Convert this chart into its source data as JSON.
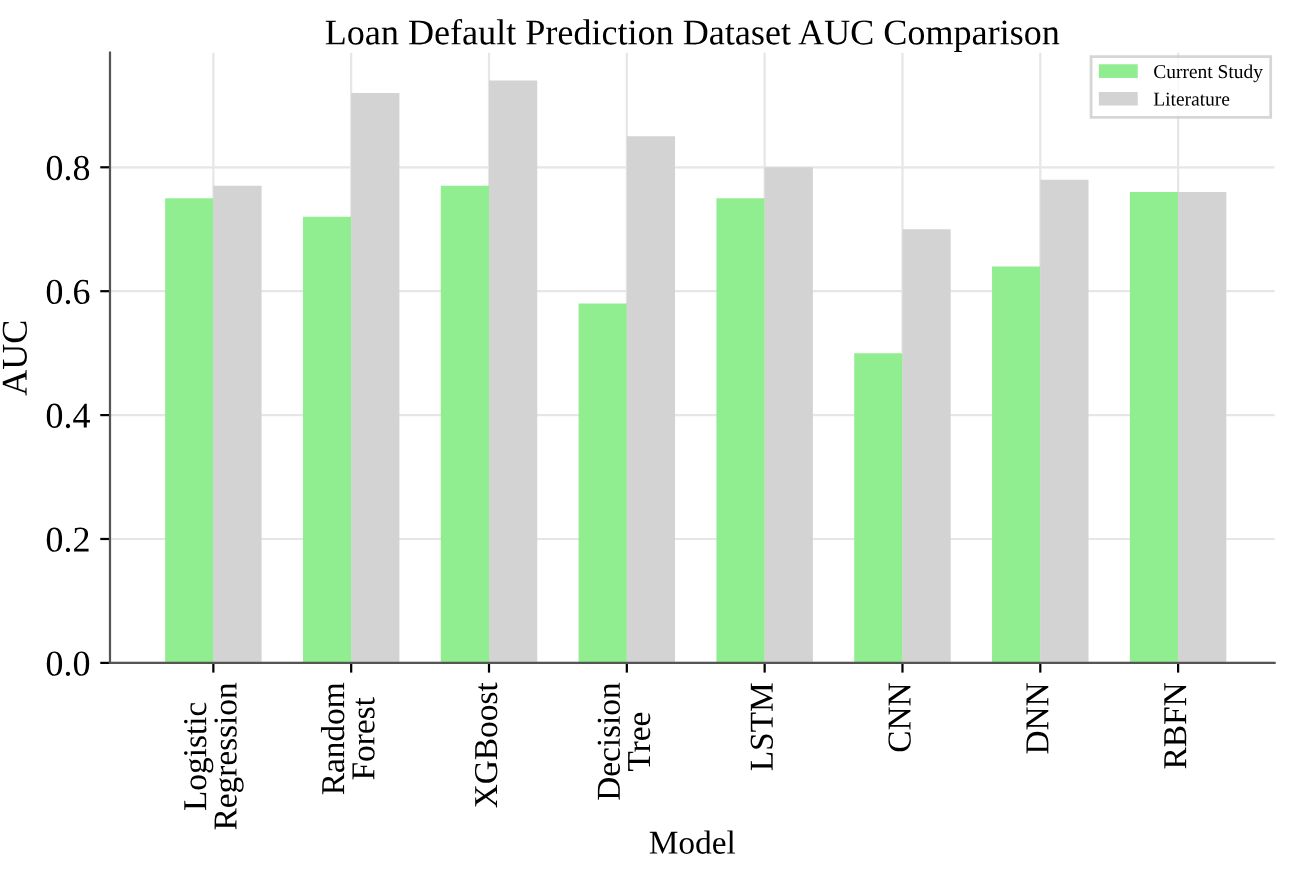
{
  "chart_data": {
    "type": "bar",
    "title": "Loan Default Prediction Dataset AUC Comparison",
    "xlabel": "Model",
    "ylabel": "AUC",
    "categories": [
      "Logistic\nRegression",
      "Random\nForest",
      "XGBoost",
      "Decision\nTree",
      "LSTM",
      "CNN",
      "DNN",
      "RBFN"
    ],
    "series": [
      {
        "name": "Current Study",
        "color": "#90ee90",
        "values": [
          0.75,
          0.72,
          0.77,
          0.58,
          0.75,
          0.5,
          0.64,
          0.76
        ]
      },
      {
        "name": "Literature",
        "color": "#d3d3d3",
        "values": [
          0.77,
          0.92,
          0.94,
          0.85,
          0.8,
          0.7,
          0.78,
          0.76
        ]
      }
    ],
    "ylim": [
      0,
      0.985
    ],
    "yticks": [
      {
        "value": 0,
        "label": "0.0"
      },
      {
        "value": 0.2,
        "label": "0.2"
      },
      {
        "value": 0.4,
        "label": "0.4"
      },
      {
        "value": 0.6,
        "label": "0.6"
      },
      {
        "value": 0.8,
        "label": "0.8"
      }
    ],
    "grid": true,
    "legend": "top right"
  }
}
